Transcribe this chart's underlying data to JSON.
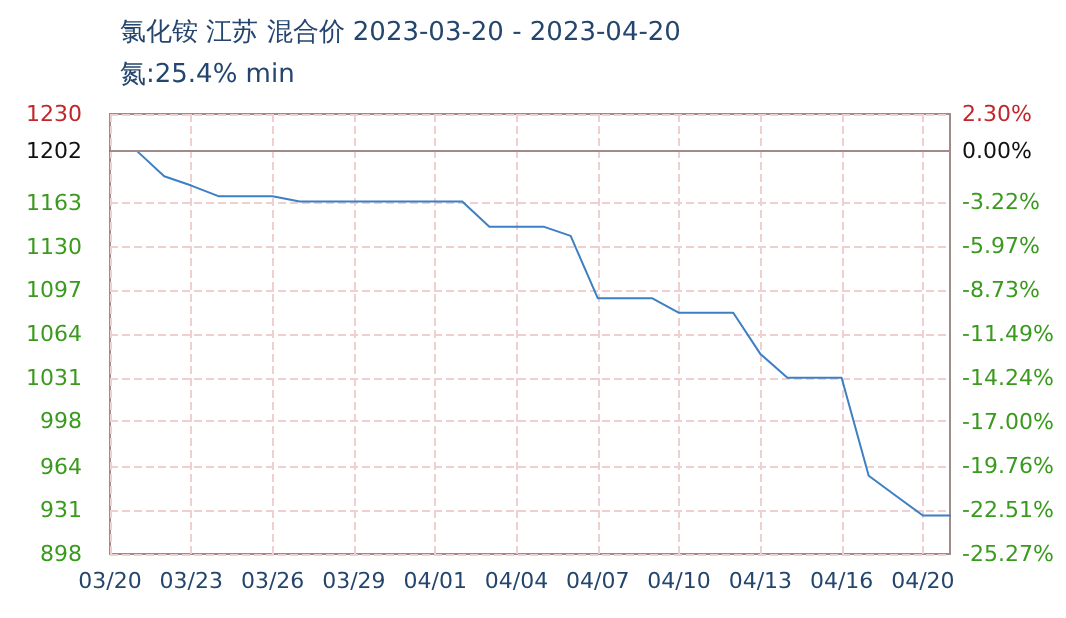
{
  "chart_data": {
    "type": "line",
    "title": "氯化铵 江苏 混合价 2023-03-20 - 2023-04-20",
    "subtitle": "氮:25.4% min",
    "x": [
      "2023-03-20",
      "2023-03-21",
      "2023-03-22",
      "2023-03-23",
      "2023-03-24",
      "2023-03-25",
      "2023-03-26",
      "2023-03-27",
      "2023-03-28",
      "2023-03-29",
      "2023-03-30",
      "2023-03-31",
      "2023-04-01",
      "2023-04-02",
      "2023-04-03",
      "2023-04-04",
      "2023-04-05",
      "2023-04-06",
      "2023-04-07",
      "2023-04-08",
      "2023-04-09",
      "2023-04-10",
      "2023-04-11",
      "2023-04-12",
      "2023-04-13",
      "2023-04-14",
      "2023-04-15",
      "2023-04-16",
      "2023-04-17",
      "2023-04-18",
      "2023-04-19",
      "2023-04-20"
    ],
    "series": [
      {
        "color": "#3d7fc4",
        "values": [
          1202,
          1202,
          1183,
          1176,
          1168,
          1168,
          1168,
          1164,
          1164,
          1164,
          1164,
          1164,
          1164,
          1164,
          1145,
          1145,
          1145,
          1138,
          1091,
          1091,
          1091,
          1080,
          1080,
          1080,
          1049,
          1031,
          1031,
          1031,
          957,
          942,
          927,
          927
        ]
      }
    ],
    "xlim": [
      "2023-03-20",
      "2023-04-20"
    ],
    "xticks": [
      {
        "value": "2023-03-20",
        "label": "03/20"
      },
      {
        "value": "2023-03-23",
        "label": "03/23"
      },
      {
        "value": "2023-03-26",
        "label": "03/26"
      },
      {
        "value": "2023-03-29",
        "label": "03/29"
      },
      {
        "value": "2023-04-01",
        "label": "04/01"
      },
      {
        "value": "2023-04-04",
        "label": "04/04"
      },
      {
        "value": "2023-04-07",
        "label": "04/07"
      },
      {
        "value": "2023-04-10",
        "label": "04/10"
      },
      {
        "value": "2023-04-13",
        "label": "04/13"
      },
      {
        "value": "2023-04-16",
        "label": "04/16"
      },
      {
        "value": "2023-04-19",
        "label": "04/20"
      }
    ],
    "ylim": [
      898,
      1230
    ],
    "yticks": [
      898,
      931,
      964,
      998,
      1031,
      1064,
      1097,
      1130,
      1163,
      1202,
      1230
    ],
    "y2lim": [
      -25.27,
      2.3
    ],
    "y2ticks": [
      {
        "value": -25.27,
        "label": "-25.27%"
      },
      {
        "value": -22.51,
        "label": "-22.51%"
      },
      {
        "value": -19.76,
        "label": "-19.76%"
      },
      {
        "value": -17.0,
        "label": "-17.00%"
      },
      {
        "value": -14.24,
        "label": "-14.24%"
      },
      {
        "value": -11.49,
        "label": "-11.49%"
      },
      {
        "value": -8.73,
        "label": "-8.73%"
      },
      {
        "value": -5.97,
        "label": "-5.97%"
      },
      {
        "value": -3.22,
        "label": "-3.22%"
      },
      {
        "value": 0,
        "label": "0.00%"
      },
      {
        "value": 2.3,
        "label": "2.30%"
      }
    ],
    "ref_lines": [
      {
        "axis": "y",
        "value": 1202,
        "color": "#a08a8a",
        "line_style": "solid"
      }
    ],
    "grid": true,
    "marker": "none",
    "line_style": "solid"
  }
}
